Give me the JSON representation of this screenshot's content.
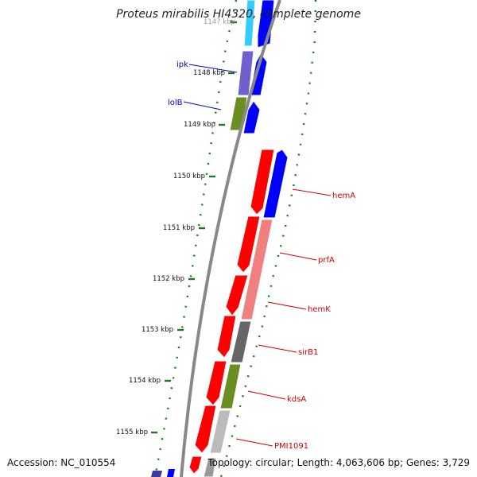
{
  "title": "Proteus mirabilis HI4320, complete genome",
  "accession_label": "Accession: NC_010554",
  "topology_label": "Topology: circular; Length: 4,063,606 bp; Genes: 3,729",
  "tick_labels": [
    "1147 kbp",
    "1148 kbp",
    "1149 kbp",
    "1150 kbp",
    "1151 kbp",
    "1152 kbp",
    "1153 kbp",
    "1154 kbp",
    "1155 kbp"
  ],
  "gene_labels": [
    {
      "name": "ipk",
      "strand": "minus",
      "color": "#0000cc"
    },
    {
      "name": "lolB",
      "strand": "minus",
      "color": "#0000cc"
    },
    {
      "name": "hemA",
      "strand": "plus",
      "color": "#cc0000"
    },
    {
      "name": "prfA",
      "strand": "plus",
      "color": "#cc0000"
    },
    {
      "name": "hemK",
      "strand": "plus",
      "color": "#cc0000"
    },
    {
      "name": "sirB1",
      "strand": "plus",
      "color": "#cc0000"
    },
    {
      "name": "kdsA",
      "strand": "plus",
      "color": "#cc0000"
    },
    {
      "name": "PMI1091",
      "strand": "plus",
      "color": "#cc0000"
    }
  ],
  "colors": {
    "forward_cds": "#ff0000",
    "reverse_cds": "#0000ff",
    "cog_blue": "#1e90ff",
    "cog_cyan": "#33ccff",
    "cog_purple": "#6f5fcf",
    "cog_olive": "#6b8e23",
    "cog_salmon": "#f08080",
    "cog_gray": "#666666",
    "cog_lightgray": "#bbbbbb",
    "backbone": "#888888",
    "ticks": "#1a7a1a"
  }
}
